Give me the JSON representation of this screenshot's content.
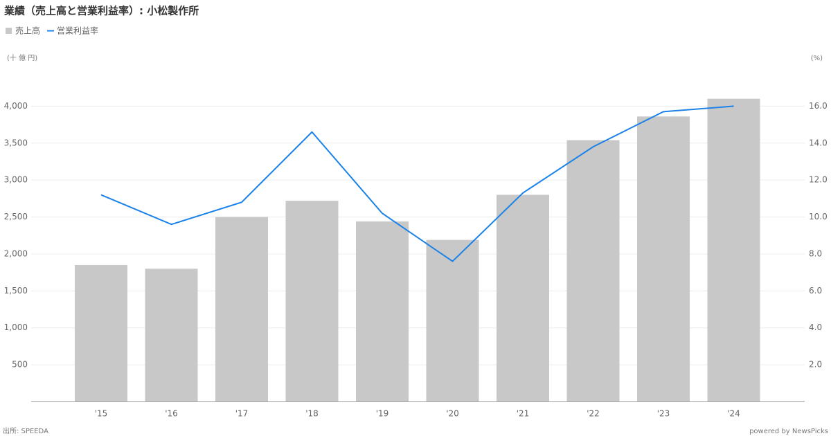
{
  "chart_data": {
    "type": "bar_line",
    "title": "業績（売上高と営業利益率）: 小松製作所",
    "y_axis_label": "(十 億 円)",
    "y2_axis_label": "(%)",
    "source": "出所: SPEEDA",
    "credit": "powered by NewsPicks",
    "categories": [
      "'15",
      "'16",
      "'17",
      "'18",
      "'19",
      "'20",
      "'21",
      "'22",
      "'23",
      "'24"
    ],
    "series": [
      {
        "name": "売上高",
        "type": "bar",
        "color": "#c8c8c8",
        "values": [
          1850,
          1800,
          2500,
          2720,
          2440,
          2190,
          2800,
          3540,
          3860,
          4100
        ]
      },
      {
        "name": "営業利益率",
        "type": "line",
        "axis": "y2",
        "color": "#1a82e8",
        "values": [
          11.2,
          9.6,
          10.8,
          14.6,
          10.2,
          7.6,
          11.3,
          13.8,
          15.7,
          16.0
        ]
      }
    ],
    "ylim": [
      0,
      4500
    ],
    "yticks": [
      500,
      {
        "value": 1000,
        "label": "1,000"
      },
      {
        "value": 1500,
        "label": "1,500"
      },
      {
        "value": 2000,
        "label": "2,000"
      },
      {
        "value": 2500,
        "label": "2,500"
      },
      {
        "value": 3000,
        "label": "3,000"
      },
      {
        "value": 3500,
        "label": "3,500"
      },
      {
        "value": 4000,
        "label": "4,000"
      }
    ],
    "y2lim": [
      0,
      18
    ],
    "y2ticks": [
      {
        "value": 2,
        "label": "2.0"
      },
      {
        "value": 4,
        "label": "4.0"
      },
      {
        "value": 6,
        "label": "6.0"
      },
      {
        "value": 8,
        "label": "8.0"
      },
      {
        "value": 10,
        "label": "10.0"
      },
      {
        "value": 12,
        "label": "12.0"
      },
      {
        "value": 14,
        "label": "14.0"
      },
      {
        "value": 16,
        "label": "16.0"
      }
    ],
    "grid": true
  }
}
